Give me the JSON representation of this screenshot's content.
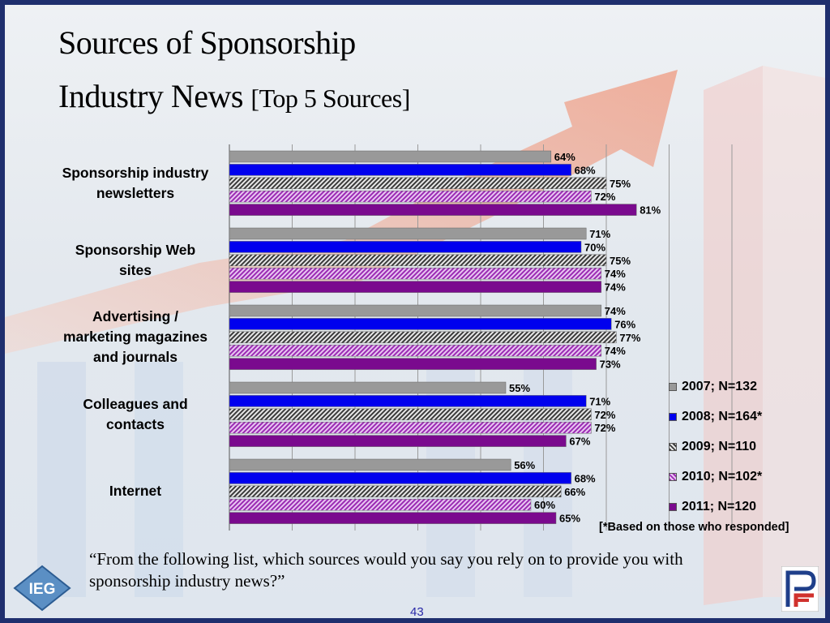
{
  "slide": {
    "title_line1": "Sources of Sponsorship",
    "title_line2": "Industry News",
    "title_suffix": "[Top 5 Sources]",
    "question": "“From the following list, which sources would you say you rely on to provide you with sponsorship industry news?”",
    "footnote": "[*Based on those who responded]",
    "page_number": "43",
    "logo_left_text": "IEG"
  },
  "chart_data": {
    "type": "bar",
    "orientation": "horizontal",
    "title": "",
    "xlabel": "",
    "ylabel": "",
    "xlim": [
      0,
      100
    ],
    "grid": true,
    "legend_position": "right",
    "categories": [
      "Sponsorship industry newsletters",
      "Sponsorship Web sites",
      "Advertising / marketing magazines and journals",
      "Colleagues and contacts",
      "Internet"
    ],
    "series": [
      {
        "name": "2007; N=132",
        "values": [
          64,
          71,
          74,
          55,
          56
        ],
        "color": "#999999",
        "pattern": "solid"
      },
      {
        "name": "2008; N=164*",
        "values": [
          68,
          70,
          76,
          71,
          68
        ],
        "color": "#0000ee",
        "pattern": "solid"
      },
      {
        "name": "2009; N=110",
        "values": [
          75,
          75,
          77,
          72,
          66
        ],
        "color": "#555555",
        "pattern": "hatch-dark"
      },
      {
        "name": "2010; N=102*",
        "values": [
          72,
          74,
          74,
          72,
          60
        ],
        "color": "#9a2bb3",
        "pattern": "hatch-purple"
      },
      {
        "name": "2011; N=120",
        "values": [
          81,
          74,
          73,
          67,
          65
        ],
        "color": "#7a0a8e",
        "pattern": "solid"
      }
    ],
    "value_suffix": "%"
  }
}
